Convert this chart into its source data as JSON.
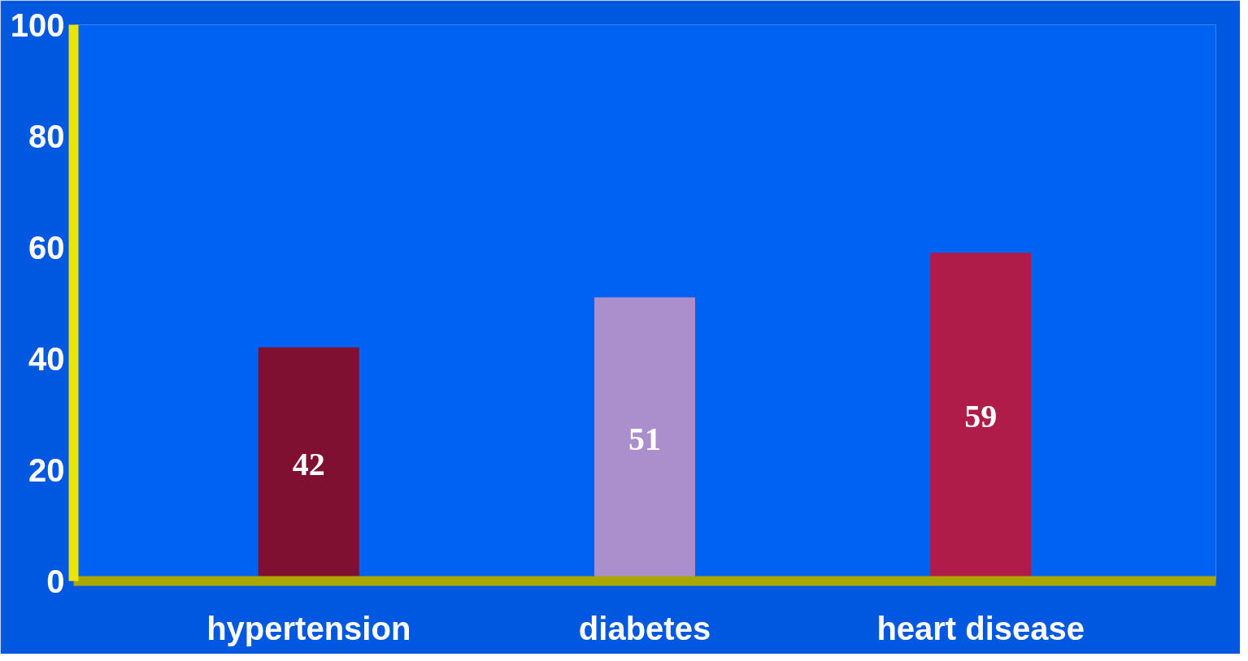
{
  "chart_data": {
    "type": "bar",
    "categories": [
      "hypertension",
      "diabetes",
      "heart disease"
    ],
    "values": [
      42,
      51,
      59
    ],
    "colors": [
      "#801030",
      "#ab8fcc",
      "#b01c48"
    ],
    "ylim": [
      0,
      100
    ],
    "yticks": [
      0,
      20,
      40,
      60,
      80,
      100
    ],
    "data_labels": true
  }
}
